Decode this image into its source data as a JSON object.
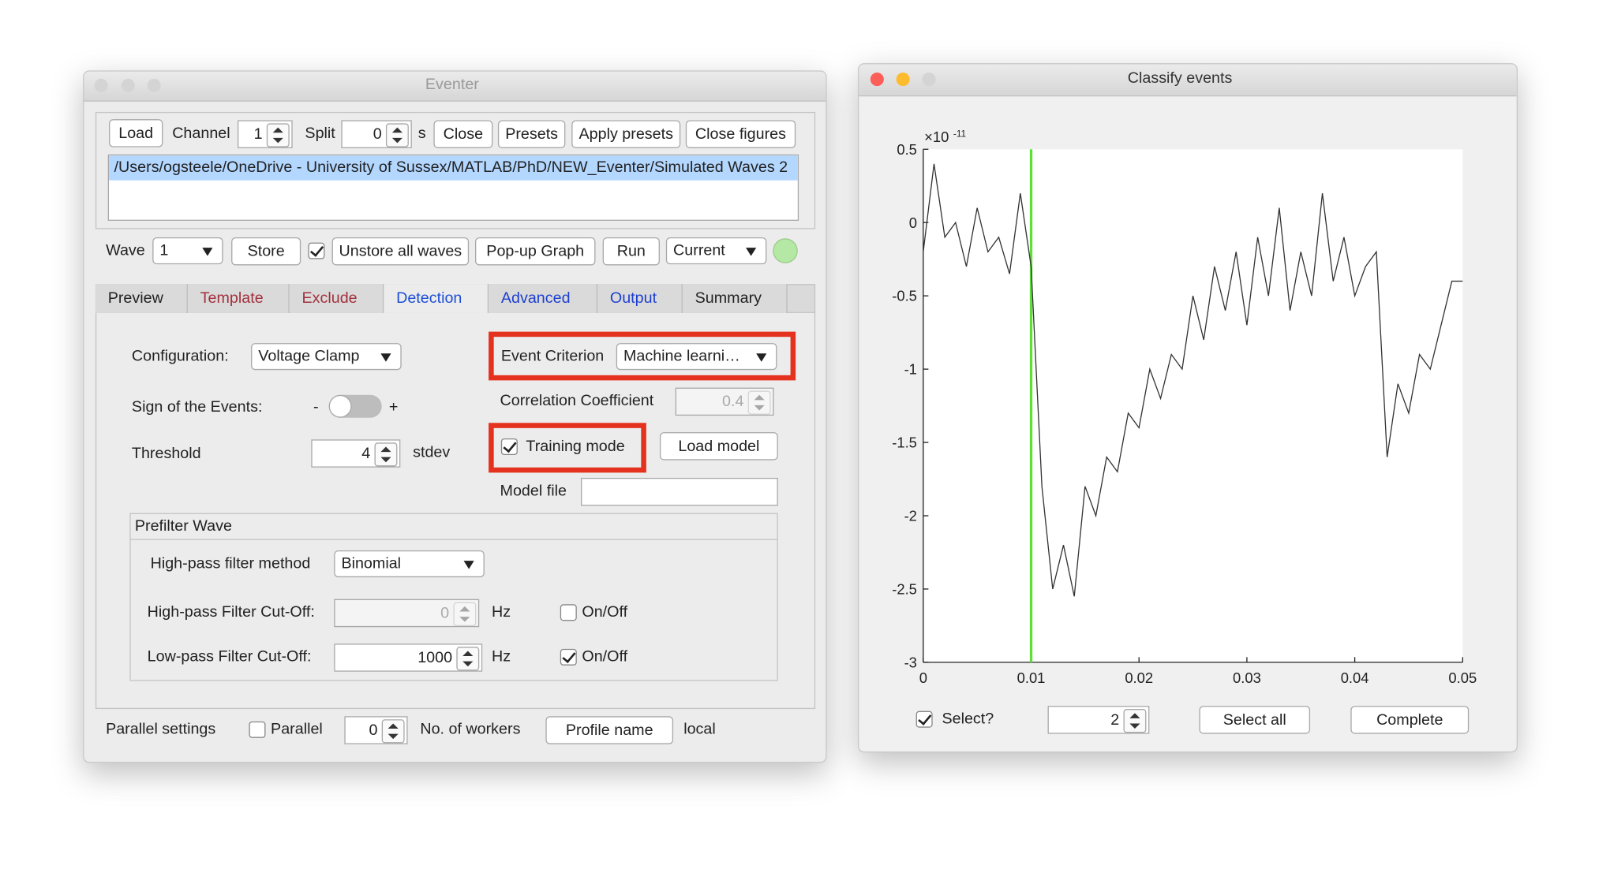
{
  "eventer": {
    "title": "Eventer",
    "toolbar": {
      "load": "Load",
      "channel_label": "Channel",
      "channel": 1,
      "split_label": "Split",
      "split": 0,
      "split_unit": "s",
      "close": "Close",
      "presets": "Presets",
      "apply_presets": "Apply presets",
      "close_figures": "Close figures"
    },
    "files": [
      "/Users/ogsteele/OneDrive - University of Sussex/MATLAB/PhD/NEW_Eventer/Simulated Waves 2"
    ],
    "wave_row": {
      "wave_label": "Wave",
      "wave": "1",
      "store": "Store",
      "unstore_all": "Unstore all waves",
      "popup_graph": "Pop-up Graph",
      "run": "Run",
      "mode": "Current"
    },
    "tabs": [
      "Preview",
      "Template",
      "Exclude",
      "Detection",
      "Advanced",
      "Output",
      "Summary"
    ],
    "detection": {
      "configuration_label": "Configuration:",
      "configuration": "Voltage Clamp",
      "sign_label": "Sign of the Events:",
      "sign_minus": "-",
      "sign_plus": "+",
      "threshold_label": "Threshold",
      "threshold": 4,
      "threshold_unit": "stdev",
      "event_criterion_label": "Event Criterion",
      "event_criterion": "Machine learni…",
      "correlation_label": "Correlation Coefficient",
      "correlation": 0.4,
      "training_mode": "Training mode",
      "load_model": "Load model",
      "model_file_label": "Model file"
    },
    "prefilter": {
      "title": "Prefilter Wave",
      "method_label": "High-pass filter method",
      "method": "Binomial",
      "highpass_label": "High-pass Filter Cut-Off:",
      "highpass": 0,
      "highpass_unit": "Hz",
      "highpass_toggle": "On/Off",
      "lowpass_label": "Low-pass Filter Cut-Off:",
      "lowpass": 1000,
      "lowpass_unit": "Hz",
      "lowpass_toggle": "On/Off"
    },
    "parallel": {
      "label": "Parallel settings",
      "parallel": "Parallel",
      "workers": 0,
      "workers_label": "No. of workers",
      "profile_name": "Profile name",
      "profile": "local"
    }
  },
  "classify": {
    "title": "Classify events",
    "select": "Select?",
    "event": 2,
    "select_all": "Select all",
    "complete": "Complete"
  },
  "chart_data": {
    "type": "line",
    "exponent_base": "×10",
    "exponent": "-11",
    "color": "#333333",
    "x": [
      0,
      0.001,
      0.002,
      0.003,
      0.004,
      0.005,
      0.006,
      0.007,
      0.008,
      0.009,
      0.01,
      0.011,
      0.012,
      0.013,
      0.014,
      0.015,
      0.016,
      0.017,
      0.018,
      0.019,
      0.02,
      0.021,
      0.022,
      0.023,
      0.024,
      0.025,
      0.026,
      0.027,
      0.028,
      0.029,
      0.03,
      0.031,
      0.032,
      0.033,
      0.034,
      0.035,
      0.036,
      0.037,
      0.038,
      0.039,
      0.04,
      0.041,
      0.042,
      0.043,
      0.044,
      0.045,
      0.046,
      0.047,
      0.048,
      0.049,
      0.05
    ],
    "values": [
      -0.2,
      0.4,
      -0.1,
      0,
      -0.3,
      0.1,
      -0.2,
      -0.1,
      -0.35,
      0.2,
      -0.3,
      -1.8,
      -2.5,
      -2.2,
      -2.55,
      -1.8,
      -2,
      -1.6,
      -1.7,
      -1.3,
      -1.4,
      -1,
      -1.2,
      -0.9,
      -1,
      -0.5,
      -0.8,
      -0.3,
      -0.6,
      -0.2,
      -0.7,
      -0.1,
      -0.5,
      0.1,
      -0.6,
      -0.2,
      -0.5,
      0.2,
      -0.4,
      -0.1,
      -0.5,
      -0.3,
      -0.2,
      -1.6,
      -1.1,
      -1.3,
      -0.9,
      -1,
      -0.7,
      -0.4,
      -0.4
    ],
    "vlines": [
      {
        "x": 0.01,
        "color": "#5ee03a"
      }
    ],
    "xlim": [
      0,
      0.05
    ],
    "xticks": [
      0,
      0.01,
      0.02,
      0.03,
      0.04,
      0.05
    ],
    "ylim": [
      -3,
      0.5
    ],
    "yticks": [
      0.5,
      0,
      -0.5,
      -1,
      -1.5,
      -2,
      -2.5,
      -3
    ],
    "grid": false
  }
}
